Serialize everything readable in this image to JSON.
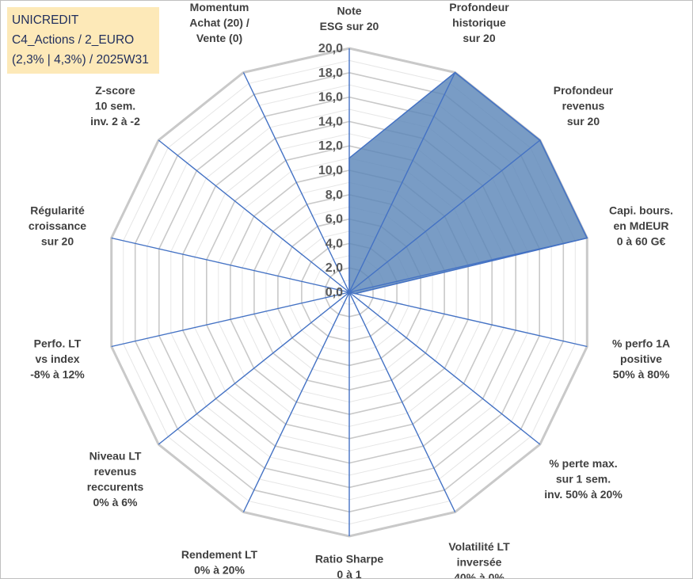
{
  "chart_data": {
    "type": "radar",
    "title_lines": [
      "UNICREDIT",
      "C4_Actions / 2_EURO",
      "(2,3% | 4,3%) / 2025W31"
    ],
    "rlim": [
      0,
      20
    ],
    "ticks": [
      "0,0",
      "2,0",
      "4,0",
      "6,0",
      "8,0",
      "10,0",
      "12,0",
      "14,0",
      "16,0",
      "18,0",
      "20,0"
    ],
    "axes": [
      {
        "label": [
          "Note",
          "ESG sur 20"
        ],
        "value": 11
      },
      {
        "label": [
          "Profondeur",
          "historique",
          "sur 20"
        ],
        "value": 20
      },
      {
        "label": [
          "Profondeur",
          "revenus",
          "sur 20"
        ],
        "value": 20
      },
      {
        "label": [
          "Capi. bours.",
          "en MdEUR",
          "0 à 60 G€"
        ],
        "value": 20
      },
      {
        "label": [
          "% perfo 1A",
          "positive",
          "50% à 80%"
        ],
        "value": 0.5
      },
      {
        "label": [
          "% perte max.",
          "sur 1 sem.",
          "inv. 50% à 20%"
        ],
        "value": 0
      },
      {
        "label": [
          "Volatilité LT",
          "inversée",
          "40% à 0%"
        ],
        "value": 0
      },
      {
        "label": [
          "Ratio Sharpe",
          "0 à 1"
        ],
        "value": 0
      },
      {
        "label": [
          "Rendement LT",
          "0% à 20%"
        ],
        "value": 0
      },
      {
        "label": [
          "Niveau LT",
          "revenus",
          "reccurents",
          "0% à 6%"
        ],
        "value": 0
      },
      {
        "label": [
          "Perfo. LT",
          "vs index",
          "-8% à 12%"
        ],
        "value": 0
      },
      {
        "label": [
          "Régularité",
          "croissance",
          "sur 20"
        ],
        "value": 0
      },
      {
        "label": [
          "Z-score",
          "10 sem.",
          "inv. 2 à -2"
        ],
        "value": 0
      },
      {
        "label": [
          "Momentum",
          "Achat (20) /",
          "Vente (0)"
        ],
        "value": 0
      }
    ],
    "fill_color": "#5b86b8",
    "line_color": "#4472c4",
    "grid_color": "#d9d9d9"
  }
}
